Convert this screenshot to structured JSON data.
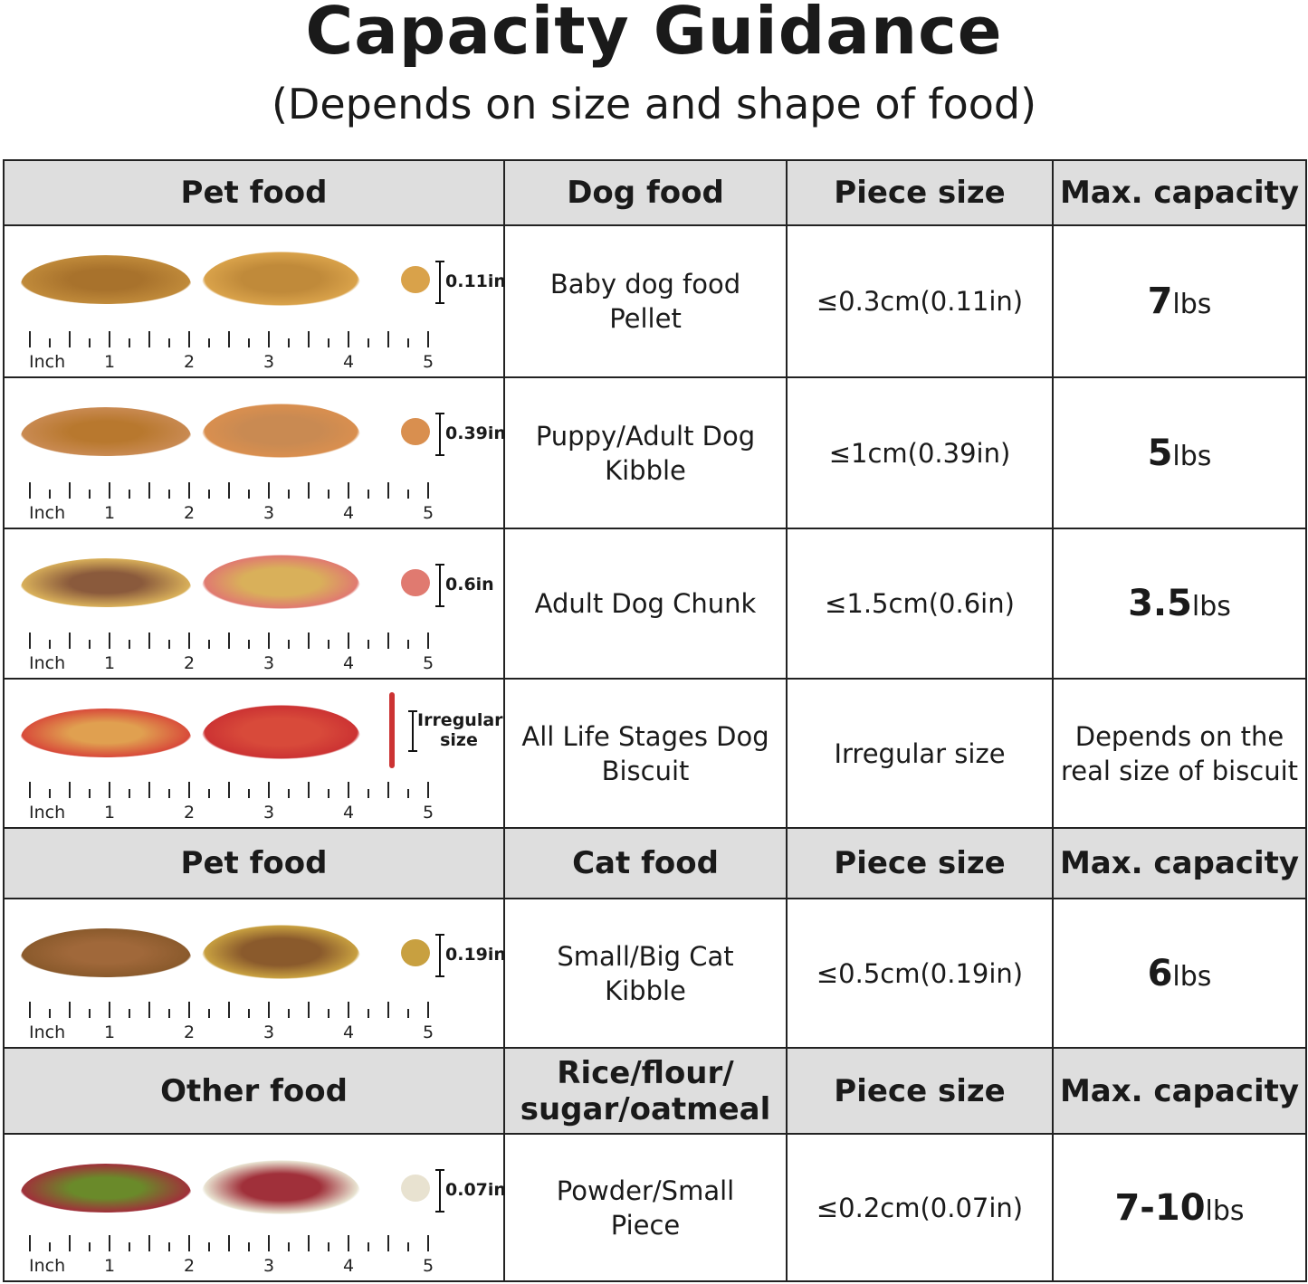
{
  "title": "Capacity Guidance",
  "subtitle": "(Depends on size and shape of food)",
  "ruler": {
    "unit": "Inch",
    "labels": [
      "1",
      "2",
      "3",
      "4",
      "5"
    ]
  },
  "sections": [
    {
      "header": {
        "col1": "Pet food",
        "col2": "Dog food",
        "col3": "Piece size",
        "col4": "Max. capacity"
      },
      "rows": [
        {
          "measure": "0.11in",
          "food": "Baby dog food Pellet",
          "size": "≤0.3cm(0.11in)",
          "cap_num": "7",
          "cap_unit": "lbs",
          "colors": [
            "#a8722c",
            "#c08a3a",
            "#d9a24a"
          ]
        },
        {
          "measure": "0.39in",
          "food": "Puppy/Adult Dog Kibble",
          "size": "≤1cm(0.39in)",
          "cap_num": "5",
          "cap_unit": "lbs",
          "colors": [
            "#b8782e",
            "#c98a52",
            "#d98f4f"
          ]
        },
        {
          "measure": "0.6in",
          "food": "Adult Dog Chunk",
          "size": "≤1.5cm(0.6in)",
          "cap_num": "3.5",
          "cap_unit": "lbs",
          "colors": [
            "#8a5a3c",
            "#d9b05a",
            "#e07a70"
          ]
        },
        {
          "measure": "Irregular size",
          "food": "All Life Stages Dog Biscuit",
          "size": "Irregular size",
          "cap_text": "Depends on the real size of biscuit",
          "colors": [
            "#e0a050",
            "#d84a3a",
            "#cc3333"
          ]
        }
      ]
    },
    {
      "header": {
        "col1": "Pet food",
        "col2": "Cat food",
        "col3": "Piece size",
        "col4": "Max. capacity"
      },
      "rows": [
        {
          "measure": "0.19in",
          "food": "Small/Big Cat Kibble",
          "size": "≤0.5cm(0.19in)",
          "cap_num": "6",
          "cap_unit": "lbs",
          "colors": [
            "#a0683a",
            "#8a5a2c",
            "#c8a040"
          ]
        }
      ]
    },
    {
      "header": {
        "col1": "Other food",
        "col2": "Rice/flour/ sugar/oatmeal",
        "col3": "Piece size",
        "col4": "Max. capacity"
      },
      "rows": [
        {
          "measure": "0.07in",
          "food": "Powder/Small Piece",
          "size": "≤0.2cm(0.07in)",
          "cap_num": "7-10",
          "cap_unit": "lbs",
          "colors": [
            "#6a8a2a",
            "#a0303a",
            "#e8e2d0"
          ]
        }
      ]
    }
  ]
}
